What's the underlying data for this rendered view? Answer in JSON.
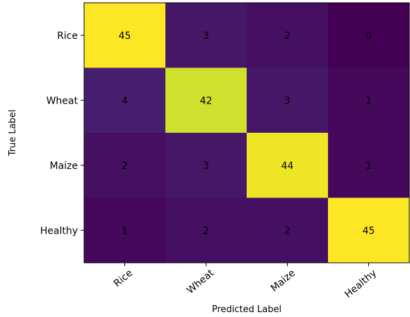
{
  "chart_data": {
    "type": "heatmap",
    "title": "",
    "xlabel": "Predicted Label",
    "ylabel": "True Label",
    "x_categories": [
      "Rice",
      "Wheat",
      "Maize",
      "Healthy"
    ],
    "y_categories": [
      "Rice",
      "Wheat",
      "Maize",
      "Healthy"
    ],
    "values": [
      [
        45,
        3,
        2,
        0
      ],
      [
        4,
        42,
        3,
        1
      ],
      [
        2,
        3,
        44,
        1
      ],
      [
        1,
        2,
        2,
        45
      ]
    ],
    "colormap": "viridis",
    "value_range": [
      0,
      45
    ],
    "grid": false
  }
}
